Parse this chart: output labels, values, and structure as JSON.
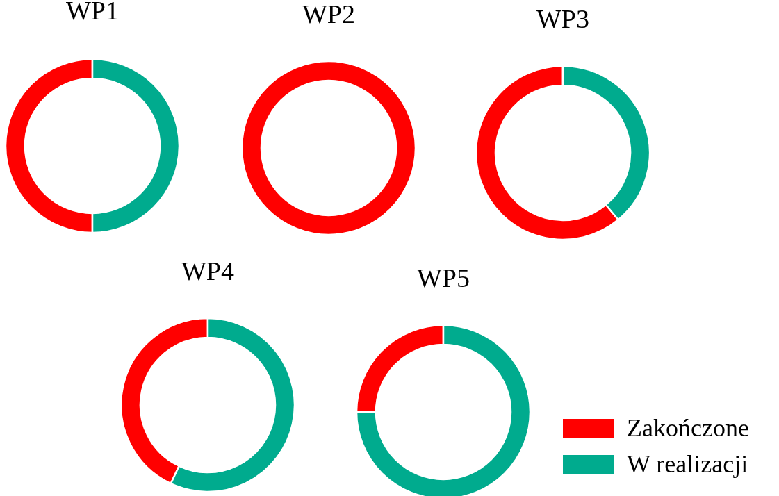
{
  "chart_data": [
    {
      "type": "donut",
      "title": "WP1",
      "categories": [
        null,
        null
      ],
      "values": [
        50,
        50
      ],
      "colors": [
        "#ff0000",
        "#00ab8e"
      ],
      "legend": false
    },
    {
      "type": "donut",
      "title": "WP2",
      "categories": [
        null
      ],
      "values": [
        100
      ],
      "colors": [
        "#ff0000"
      ],
      "legend": false
    },
    {
      "type": "donut",
      "title": "WP3",
      "categories": [
        null,
        null
      ],
      "values": [
        61,
        39
      ],
      "colors": [
        "#ff0000",
        "#00ab8e"
      ],
      "legend": false
    },
    {
      "type": "donut",
      "title": "WP4",
      "categories": [
        null,
        null
      ],
      "values": [
        43,
        57
      ],
      "colors": [
        "#ff0000",
        "#00ab8e"
      ],
      "legend": false
    },
    {
      "type": "donut",
      "title": "WP5",
      "categories": [
        "Zakończone",
        "W realizacji"
      ],
      "values": [
        25,
        75
      ],
      "colors": [
        "#ff0000",
        "#00ab8e"
      ],
      "legend": "bottom right"
    }
  ]
}
